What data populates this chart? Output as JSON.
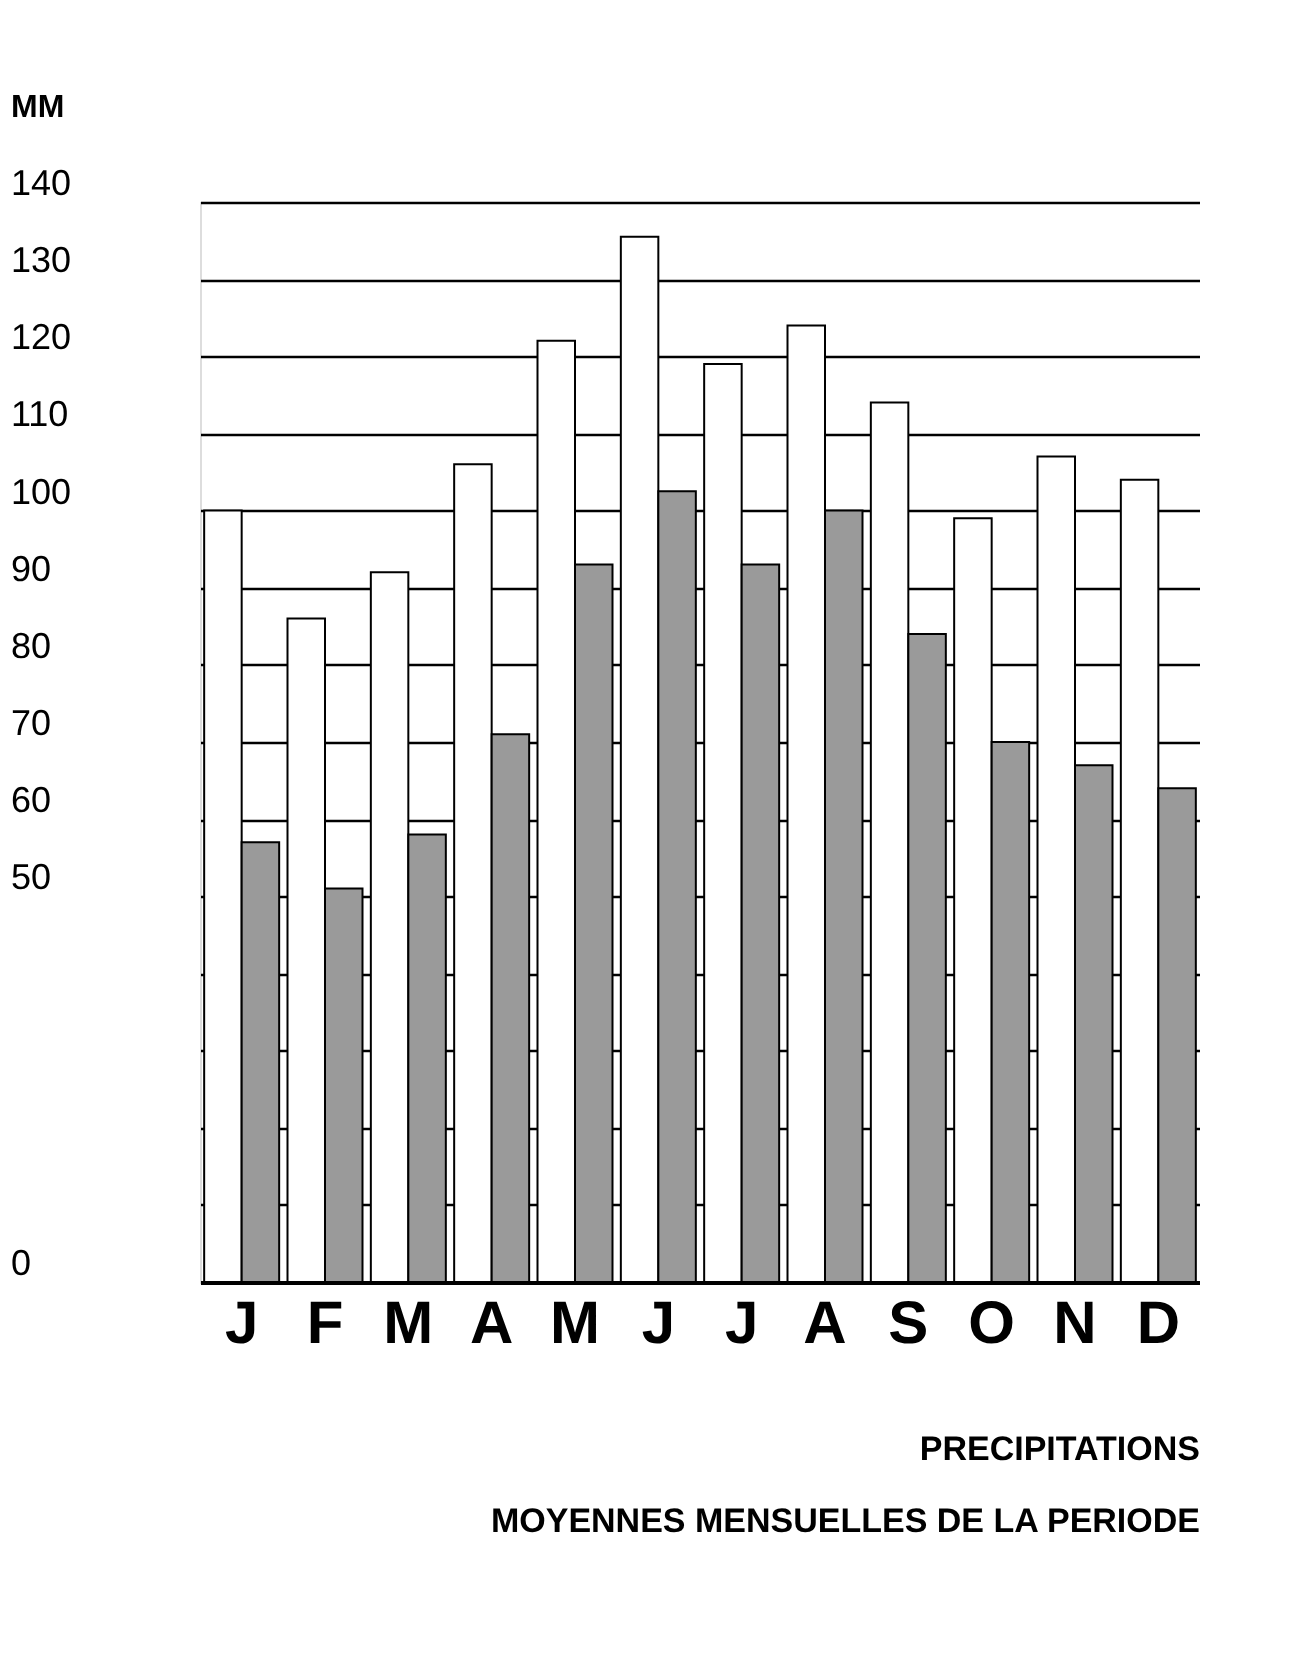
{
  "chart_data": {
    "type": "bar",
    "title": "PRECIPITATIONS MOYENNES MENSUELLES DE LA PERIODE",
    "ylabel": "MM",
    "categories": [
      "J",
      "F",
      "M",
      "A",
      "M",
      "J",
      "J",
      "A",
      "S",
      "O",
      "N",
      "D"
    ],
    "series": [
      {
        "color": "#ffffff",
        "values": [
          100,
          86,
          92,
          106,
          122,
          135.5,
          119,
          124,
          114,
          99,
          107,
          104
        ]
      },
      {
        "color": "#9a9a9a",
        "values": [
          57,
          51,
          58,
          71,
          93,
          102.5,
          93,
          100,
          84,
          70,
          67,
          64
        ]
      }
    ],
    "ylim": [
      0,
      140
    ],
    "yticks": [
      0,
      {
        "value": 10,
        "label": null
      },
      {
        "value": 20,
        "label": null
      },
      {
        "value": 30,
        "label": null
      },
      {
        "value": 40,
        "label": null
      },
      50,
      60,
      70,
      80,
      90,
      100,
      110,
      120,
      130,
      140
    ],
    "grid": "y",
    "legend": false
  }
}
